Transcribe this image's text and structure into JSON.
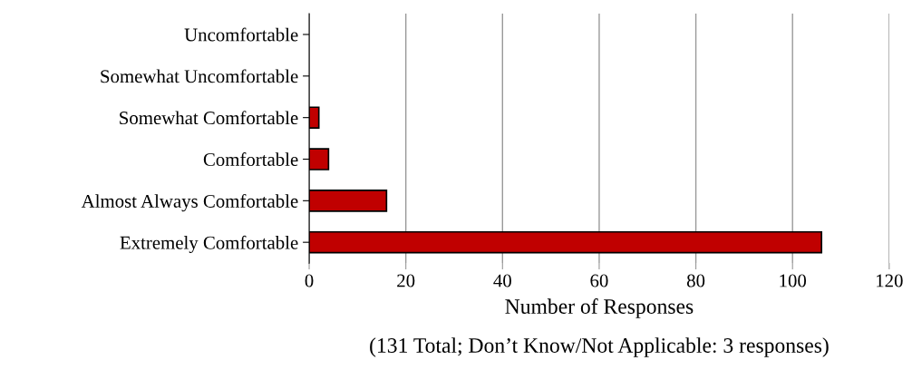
{
  "chart_data": {
    "type": "bar",
    "orientation": "horizontal",
    "categories": [
      "Uncomfortable",
      "Somewhat Uncomfortable",
      "Somewhat Comfortable",
      "Comfortable",
      "Almost Always Comfortable",
      "Extremely Comfortable"
    ],
    "values": [
      0,
      0,
      2,
      4,
      16,
      106
    ],
    "color": "#c00000",
    "xlim": [
      0,
      120
    ],
    "xticks": [
      0,
      20,
      40,
      60,
      80,
      100,
      120
    ],
    "grid": "x",
    "xlabel": "Number of Responses",
    "annotations": [
      "(131 Total; Don’t Know/Not Applicable: 3 responses)"
    ]
  }
}
